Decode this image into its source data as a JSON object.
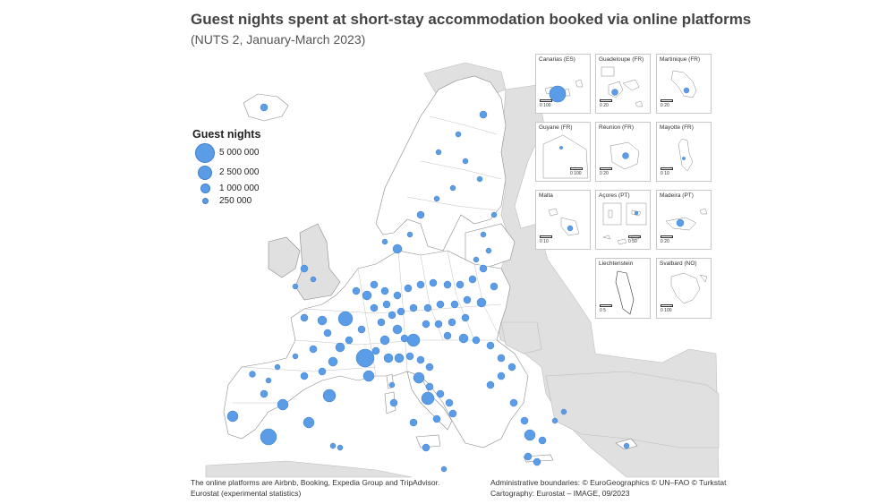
{
  "title": "Guest nights spent at short-stay accommodation booked via online platforms",
  "subtitle": "(NUTS 2, January-March 2023)",
  "legend": {
    "title": "Guest nights",
    "entries": [
      {
        "label": "5 000 000",
        "value": 5000000
      },
      {
        "label": "2 500 000",
        "value": 2500000
      },
      {
        "label": "1 000 000",
        "value": 1000000
      },
      {
        "label": "250 000",
        "value": 250000
      }
    ]
  },
  "colors": {
    "bubble": "#5b9ce6",
    "bubble_stroke": "#3f7fcc",
    "land_data": "#ffffff",
    "land_other": "#e0e0e0",
    "sea": "#ffffff"
  },
  "insets": [
    {
      "name": "Canarias (ES)",
      "scale": "0   100"
    },
    {
      "name": "Guadeloupe (FR)",
      "scale": "0   20"
    },
    {
      "name": "Martinique (FR)",
      "scale": "0   20"
    },
    {
      "name": "Guyane (FR)",
      "scale": "0   100"
    },
    {
      "name": "Réunion (FR)",
      "scale": "0   20"
    },
    {
      "name": "Mayotte (FR)",
      "scale": "0   10"
    },
    {
      "name": "Malta",
      "scale": "0   10"
    },
    {
      "name": "Açores (PT)",
      "scale": "0   50"
    },
    {
      "name": "Madeira (PT)",
      "scale": "0   20"
    },
    {
      "name": "Liechtenstein",
      "scale": "0   5"
    },
    {
      "name": "Svalbard (NO)",
      "scale": "0   100"
    }
  ],
  "footer": {
    "left_line1": "The online platforms are Airbnb, Booking, Expedia Group and TripAdvisor.",
    "left_line2": "Eurostat (experimental statistics)",
    "right_line1": "Administrative boundaries: © EuroGeographics © UN–FAO © Turkstat",
    "right_line2": "Cartography: Eurostat – IMAGE, 09/2023"
  }
}
